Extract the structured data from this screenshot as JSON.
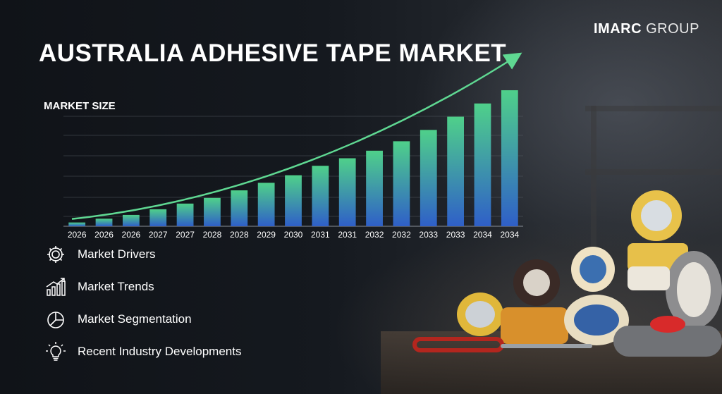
{
  "brand": {
    "bold": "IMARC",
    "light": "GROUP"
  },
  "title": "AUSTRALIA ADHESIVE TAPE MARKET",
  "chart_data": {
    "type": "bar",
    "ylabel": "MARKET SIZE",
    "categories": [
      "2026",
      "2026",
      "2026",
      "2027",
      "2027",
      "2028",
      "2028",
      "2029",
      "2030",
      "2031",
      "2031",
      "2032",
      "2032",
      "2033",
      "2033",
      "2034",
      "2034"
    ],
    "values": [
      2,
      4,
      6,
      9,
      12,
      15,
      19,
      23,
      27,
      32,
      36,
      40,
      45,
      51,
      58,
      65,
      72
    ],
    "ylim": [
      0,
      75
    ],
    "grid": true,
    "trend_arrow": true,
    "colors": {
      "bar_top": "#4fd08a",
      "bar_bottom": "#2f5fc8",
      "trend": "#5fd892",
      "grid": "#5a6068"
    }
  },
  "legend": [
    {
      "icon": "gear-icon",
      "label": "Market Drivers"
    },
    {
      "icon": "growth-chart-icon",
      "label": "Market Trends"
    },
    {
      "icon": "pie-chart-icon",
      "label": "Market Segmentation"
    },
    {
      "icon": "lightbulb-icon",
      "label": "Recent Industry Developments"
    }
  ]
}
